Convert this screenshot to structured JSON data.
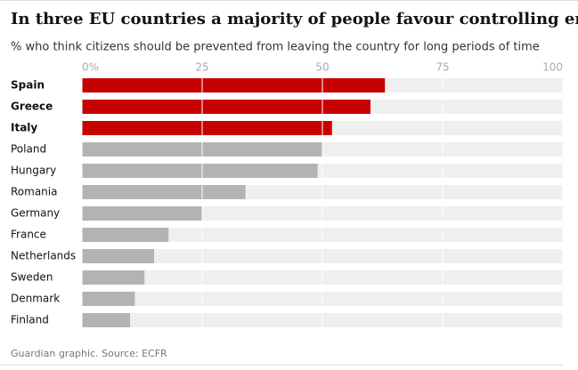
{
  "chart_data": {
    "type": "bar",
    "orientation": "horizontal",
    "title": "In three EU countries a majority of people favour controlling emigration",
    "subtitle": "% who think citizens should be prevented from leaving the country for long periods of time",
    "source": "Guardian graphic. Source: ECFR",
    "categories": [
      "Spain",
      "Greece",
      "Italy",
      "Poland",
      "Hungary",
      "Romania",
      "Germany",
      "France",
      "Netherlands",
      "Sweden",
      "Denmark",
      "Finland"
    ],
    "values": [
      63,
      60,
      52,
      50,
      49,
      34,
      25,
      18,
      15,
      13,
      11,
      10
    ],
    "colors": [
      "#c70000",
      "#c70000",
      "#c70000",
      "#b3b3b3",
      "#b3b3b3",
      "#b3b3b3",
      "#b3b3b3",
      "#b3b3b3",
      "#b3b3b3",
      "#b3b3b3",
      "#b3b3b3",
      "#b3b3b3"
    ],
    "default_color": "#b3b3b3",
    "track_color": "#efefef",
    "xlim": [
      0,
      100
    ],
    "xticks": [
      {
        "value": 0,
        "label": "0%"
      },
      25,
      50,
      75,
      100
    ],
    "grid": true
  }
}
